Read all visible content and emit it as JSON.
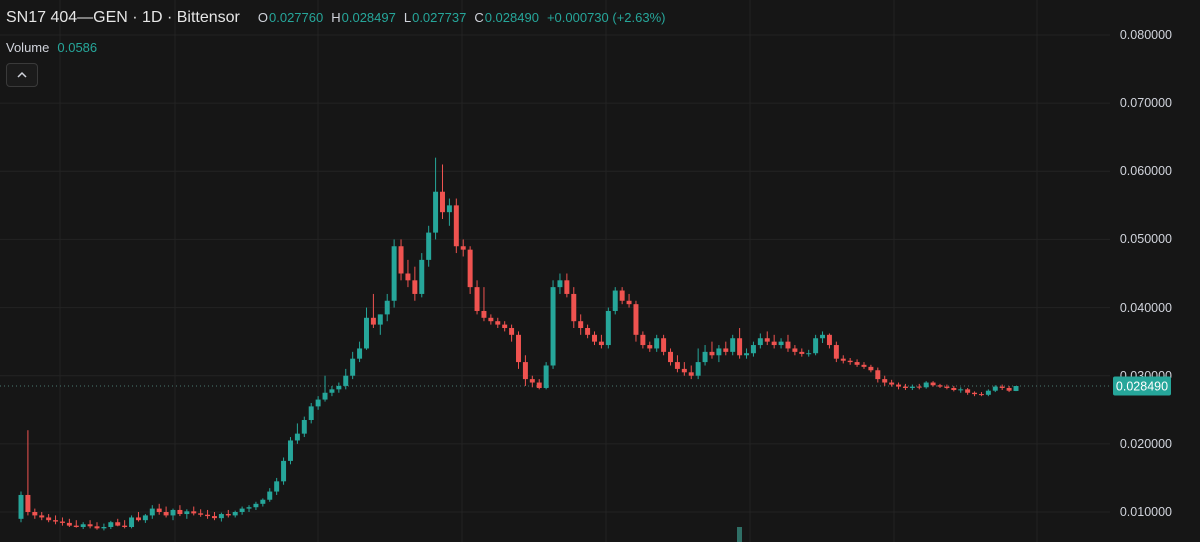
{
  "header": {
    "title": "SN17 404—GEN · 1D · Bittensor",
    "open_label": "O",
    "open": "0.027760",
    "high_label": "H",
    "high": "0.028497",
    "low_label": "L",
    "low": "0.027737",
    "close_label": "C",
    "close": "0.028490",
    "change": "+0.000730 (+2.63%)"
  },
  "volume": {
    "label": "Volume",
    "value": "0.0586"
  },
  "colors": {
    "up": "#26a69a",
    "down": "#ef5350",
    "background": "#161616",
    "grid": "#232323"
  },
  "icons": {
    "collapse": "chevron-up-icon"
  },
  "chart_data": {
    "type": "candlestick",
    "y_axis": {
      "position": "right",
      "ticks": [
        "0.080000",
        "0.070000",
        "0.060000",
        "0.050000",
        "0.040000",
        "0.030000",
        "0.020000",
        "0.010000"
      ],
      "tick_values": [
        0.08,
        0.07,
        0.06,
        0.05,
        0.04,
        0.03,
        0.02,
        0.01
      ]
    },
    "last_price": {
      "label": "0.028490",
      "value": 0.02849
    },
    "grid": true,
    "ohlc": [
      [
        0.009,
        0.013,
        0.0085,
        0.0125
      ],
      [
        0.0125,
        0.022,
        0.0095,
        0.01
      ],
      [
        0.01,
        0.0105,
        0.009,
        0.0095
      ],
      [
        0.0095,
        0.01,
        0.0088,
        0.0092
      ],
      [
        0.0092,
        0.0097,
        0.0085,
        0.0088
      ],
      [
        0.0088,
        0.0095,
        0.0082,
        0.0086
      ],
      [
        0.0086,
        0.0092,
        0.008,
        0.0084
      ],
      [
        0.0084,
        0.009,
        0.0078,
        0.008
      ],
      [
        0.008,
        0.0088,
        0.0077,
        0.0078
      ],
      [
        0.0078,
        0.0085,
        0.0075,
        0.0082
      ],
      [
        0.0082,
        0.0088,
        0.0076,
        0.0079
      ],
      [
        0.0079,
        0.0085,
        0.0074,
        0.0076
      ],
      [
        0.0076,
        0.0083,
        0.0073,
        0.0078
      ],
      [
        0.0078,
        0.0087,
        0.0075,
        0.0085
      ],
      [
        0.0085,
        0.009,
        0.0079,
        0.008
      ],
      [
        0.008,
        0.0088,
        0.0076,
        0.0078
      ],
      [
        0.0078,
        0.0095,
        0.0076,
        0.0092
      ],
      [
        0.0092,
        0.01,
        0.0086,
        0.0088
      ],
      [
        0.0088,
        0.0097,
        0.0084,
        0.0095
      ],
      [
        0.0095,
        0.011,
        0.009,
        0.0105
      ],
      [
        0.0105,
        0.0112,
        0.0096,
        0.01
      ],
      [
        0.01,
        0.0108,
        0.0092,
        0.0095
      ],
      [
        0.0095,
        0.0105,
        0.0088,
        0.0103
      ],
      [
        0.0103,
        0.011,
        0.0094,
        0.0097
      ],
      [
        0.0097,
        0.0104,
        0.009,
        0.0101
      ],
      [
        0.0101,
        0.0108,
        0.0095,
        0.0098
      ],
      [
        0.0098,
        0.0104,
        0.0093,
        0.0096
      ],
      [
        0.0096,
        0.0103,
        0.009,
        0.0094
      ],
      [
        0.0094,
        0.01,
        0.0088,
        0.0091
      ],
      [
        0.0091,
        0.0099,
        0.0086,
        0.0097
      ],
      [
        0.0097,
        0.0103,
        0.0092,
        0.0095
      ],
      [
        0.0095,
        0.0102,
        0.0092,
        0.01
      ],
      [
        0.01,
        0.0108,
        0.0096,
        0.0105
      ],
      [
        0.0105,
        0.011,
        0.01,
        0.0107
      ],
      [
        0.0107,
        0.0115,
        0.0103,
        0.0112
      ],
      [
        0.0112,
        0.012,
        0.0108,
        0.0118
      ],
      [
        0.0118,
        0.0135,
        0.0115,
        0.013
      ],
      [
        0.013,
        0.015,
        0.0125,
        0.0145
      ],
      [
        0.0145,
        0.018,
        0.014,
        0.0175
      ],
      [
        0.0175,
        0.021,
        0.017,
        0.0205
      ],
      [
        0.0205,
        0.023,
        0.02,
        0.0215
      ],
      [
        0.0215,
        0.024,
        0.021,
        0.0235
      ],
      [
        0.0235,
        0.026,
        0.023,
        0.0255
      ],
      [
        0.0255,
        0.027,
        0.025,
        0.0265
      ],
      [
        0.0265,
        0.03,
        0.0262,
        0.0275
      ],
      [
        0.0275,
        0.0285,
        0.027,
        0.028
      ],
      [
        0.028,
        0.029,
        0.0275,
        0.0285
      ],
      [
        0.0285,
        0.031,
        0.028,
        0.03
      ],
      [
        0.03,
        0.0335,
        0.0295,
        0.0325
      ],
      [
        0.0325,
        0.035,
        0.032,
        0.034
      ],
      [
        0.034,
        0.04,
        0.0338,
        0.0385
      ],
      [
        0.0385,
        0.042,
        0.037,
        0.0375
      ],
      [
        0.0375,
        0.039,
        0.036,
        0.039
      ],
      [
        0.039,
        0.042,
        0.038,
        0.041
      ],
      [
        0.041,
        0.05,
        0.04,
        0.049
      ],
      [
        0.049,
        0.05,
        0.044,
        0.045
      ],
      [
        0.045,
        0.047,
        0.043,
        0.044
      ],
      [
        0.044,
        0.046,
        0.041,
        0.042
      ],
      [
        0.042,
        0.048,
        0.0415,
        0.047
      ],
      [
        0.047,
        0.052,
        0.046,
        0.051
      ],
      [
        0.051,
        0.062,
        0.05,
        0.057
      ],
      [
        0.057,
        0.061,
        0.053,
        0.054
      ],
      [
        0.054,
        0.056,
        0.052,
        0.055
      ],
      [
        0.055,
        0.056,
        0.048,
        0.049
      ],
      [
        0.049,
        0.05,
        0.0475,
        0.0485
      ],
      [
        0.0485,
        0.049,
        0.042,
        0.043
      ],
      [
        0.043,
        0.044,
        0.039,
        0.0395
      ],
      [
        0.0395,
        0.043,
        0.038,
        0.0385
      ],
      [
        0.0385,
        0.039,
        0.0375,
        0.038
      ],
      [
        0.038,
        0.0385,
        0.037,
        0.0375
      ],
      [
        0.0375,
        0.038,
        0.0365,
        0.037
      ],
      [
        0.037,
        0.0375,
        0.035,
        0.036
      ],
      [
        0.036,
        0.0365,
        0.031,
        0.032
      ],
      [
        0.032,
        0.033,
        0.0285,
        0.0295
      ],
      [
        0.0295,
        0.03,
        0.0283,
        0.029
      ],
      [
        0.029,
        0.0295,
        0.028,
        0.0282
      ],
      [
        0.0282,
        0.032,
        0.028,
        0.0315
      ],
      [
        0.0315,
        0.044,
        0.031,
        0.043
      ],
      [
        0.043,
        0.045,
        0.042,
        0.044
      ],
      [
        0.044,
        0.045,
        0.0415,
        0.042
      ],
      [
        0.042,
        0.043,
        0.037,
        0.038
      ],
      [
        0.038,
        0.039,
        0.036,
        0.037
      ],
      [
        0.037,
        0.0375,
        0.0355,
        0.036
      ],
      [
        0.036,
        0.0365,
        0.0345,
        0.035
      ],
      [
        0.035,
        0.036,
        0.034,
        0.0345
      ],
      [
        0.0345,
        0.04,
        0.034,
        0.0395
      ],
      [
        0.0395,
        0.043,
        0.039,
        0.0425
      ],
      [
        0.0425,
        0.043,
        0.0405,
        0.041
      ],
      [
        0.041,
        0.042,
        0.04,
        0.0405
      ],
      [
        0.0405,
        0.041,
        0.035,
        0.036
      ],
      [
        0.036,
        0.0365,
        0.034,
        0.0345
      ],
      [
        0.0345,
        0.035,
        0.0335,
        0.034
      ],
      [
        0.034,
        0.036,
        0.0335,
        0.0355
      ],
      [
        0.0355,
        0.036,
        0.033,
        0.0335
      ],
      [
        0.0335,
        0.034,
        0.0315,
        0.032
      ],
      [
        0.032,
        0.033,
        0.0305,
        0.031
      ],
      [
        0.031,
        0.032,
        0.03,
        0.0305
      ],
      [
        0.0305,
        0.0315,
        0.0295,
        0.03
      ],
      [
        0.03,
        0.034,
        0.0295,
        0.032
      ],
      [
        0.032,
        0.0345,
        0.0315,
        0.0335
      ],
      [
        0.0335,
        0.035,
        0.0325,
        0.033
      ],
      [
        0.033,
        0.0345,
        0.032,
        0.034
      ],
      [
        0.034,
        0.035,
        0.033,
        0.0335
      ],
      [
        0.0335,
        0.036,
        0.033,
        0.0355
      ],
      [
        0.0355,
        0.037,
        0.0325,
        0.033
      ],
      [
        0.033,
        0.034,
        0.0325,
        0.0333
      ],
      [
        0.0333,
        0.035,
        0.0328,
        0.0345
      ],
      [
        0.0345,
        0.0362,
        0.034,
        0.0355
      ],
      [
        0.0355,
        0.0365,
        0.0345,
        0.035
      ],
      [
        0.035,
        0.036,
        0.034,
        0.0345
      ],
      [
        0.0345,
        0.0355,
        0.034,
        0.035
      ],
      [
        0.035,
        0.036,
        0.0335,
        0.034
      ],
      [
        0.034,
        0.0345,
        0.033,
        0.0335
      ],
      [
        0.0335,
        0.034,
        0.0328,
        0.0332
      ],
      [
        0.0332,
        0.0338,
        0.0328,
        0.0333
      ],
      [
        0.0333,
        0.036,
        0.033,
        0.0355
      ],
      [
        0.0355,
        0.0365,
        0.0348,
        0.036
      ],
      [
        0.036,
        0.0362,
        0.034,
        0.0345
      ],
      [
        0.0345,
        0.035,
        0.032,
        0.0325
      ],
      [
        0.0325,
        0.033,
        0.0318,
        0.0322
      ],
      [
        0.0322,
        0.0326,
        0.0316,
        0.032
      ],
      [
        0.032,
        0.0324,
        0.0313,
        0.0316
      ],
      [
        0.0316,
        0.032,
        0.031,
        0.0313
      ],
      [
        0.0313,
        0.0316,
        0.0305,
        0.0308
      ],
      [
        0.0308,
        0.0312,
        0.029,
        0.0295
      ],
      [
        0.0295,
        0.03,
        0.0285,
        0.029
      ],
      [
        0.029,
        0.0294,
        0.0284,
        0.0287
      ],
      [
        0.0287,
        0.029,
        0.028,
        0.0284
      ],
      [
        0.0284,
        0.0288,
        0.0279,
        0.0282
      ],
      [
        0.0282,
        0.0287,
        0.0279,
        0.0284
      ],
      [
        0.0284,
        0.0288,
        0.028,
        0.0283
      ],
      [
        0.0283,
        0.0292,
        0.0281,
        0.029
      ],
      [
        0.029,
        0.0292,
        0.0284,
        0.0286
      ],
      [
        0.0286,
        0.0288,
        0.0282,
        0.0284
      ],
      [
        0.0284,
        0.0287,
        0.028,
        0.0282
      ],
      [
        0.0282,
        0.0285,
        0.0277,
        0.0279
      ],
      [
        0.0279,
        0.0283,
        0.0275,
        0.028
      ],
      [
        0.028,
        0.0282,
        0.0272,
        0.0275
      ],
      [
        0.0275,
        0.0277,
        0.027,
        0.0273
      ],
      [
        0.0273,
        0.0276,
        0.027,
        0.0272
      ],
      [
        0.0272,
        0.028,
        0.027,
        0.0278
      ],
      [
        0.0278,
        0.0286,
        0.0276,
        0.0284
      ],
      [
        0.0284,
        0.0287,
        0.0279,
        0.0282
      ],
      [
        0.0282,
        0.0285,
        0.0276,
        0.0278
      ],
      [
        0.02776,
        0.028497,
        0.027737,
        0.02849
      ]
    ]
  }
}
